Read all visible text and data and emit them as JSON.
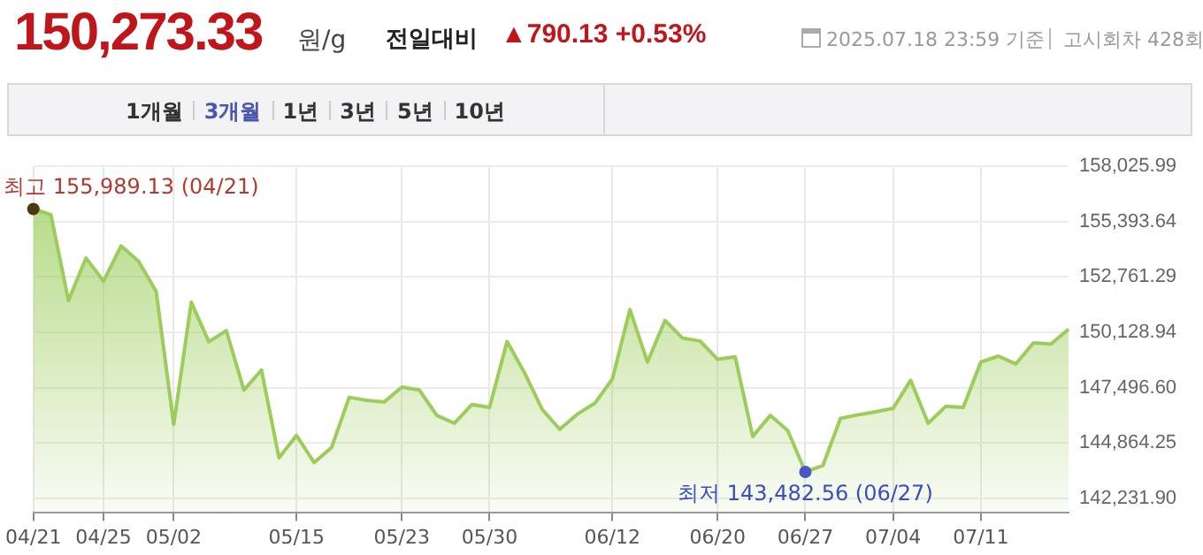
{
  "chart_data": {
    "type": "area",
    "title": "150,273.33",
    "annotations": [
      "원/g",
      "전일대비",
      "▲790.13 +0.53%",
      "2025.07.18 23:59 기준",
      "고시회차 428회",
      "1개월",
      "3개월",
      "1년",
      "3년",
      "5년",
      "10년",
      {
        "text": "최고 155,989.13 (04/21)",
        "x": "04/21",
        "y": 155989.13
      },
      {
        "text": "최저 143,482.56 (06/27)",
        "x": "06/27",
        "y": 143482.56
      }
    ],
    "categories": [
      "04/21",
      null,
      null,
      null,
      "04/25",
      null,
      null,
      null,
      "05/02",
      null,
      null,
      null,
      null,
      null,
      null,
      "05/15",
      null,
      null,
      null,
      null,
      null,
      "05/23",
      null,
      null,
      null,
      null,
      "05/30",
      null,
      null,
      null,
      null,
      null,
      null,
      "06/12",
      null,
      null,
      null,
      null,
      null,
      "06/20",
      null,
      null,
      null,
      null,
      "06/27",
      null,
      null,
      null,
      null,
      "07/04",
      null,
      null,
      null,
      null,
      "07/11",
      null,
      null,
      null,
      null,
      null
    ],
    "series": [
      {
        "color": "#9ccc5a",
        "values": [
          155989.13,
          155720,
          151640,
          153650,
          152560,
          154230,
          153500,
          152070,
          145740,
          151550,
          149680,
          150200,
          147380,
          148330,
          144160,
          145220,
          143930,
          144650,
          147030,
          146890,
          146810,
          147520,
          147380,
          146170,
          145800,
          146690,
          146550,
          149680,
          148190,
          146460,
          145510,
          146230,
          146750,
          147900,
          151210,
          148710,
          150690,
          149850,
          149710,
          148840,
          148960,
          145170,
          146170,
          145450,
          143482.56,
          143790,
          146030,
          146200,
          146340,
          146510,
          147840,
          145800,
          146600,
          146550,
          148710,
          148990,
          148620,
          149620,
          149570,
          150273.33
        ]
      }
    ],
    "ylim": [
      141568,
      158025.99
    ],
    "yticks": [
      {
        "value": 142231.9,
        "label": "142,231.90"
      },
      {
        "value": 144864.25,
        "label": "144,864.25"
      },
      {
        "value": 147496.6,
        "label": "147,496.60"
      },
      {
        "value": 150128.94,
        "label": "150,128.94"
      },
      {
        "value": 152761.29,
        "label": "152,761.29"
      },
      {
        "value": 155393.64,
        "label": "155,393.64"
      },
      {
        "value": 158025.99,
        "label": "158,025.99"
      }
    ],
    "grid": true,
    "legend": false,
    "marker": "none",
    "line_style": "solid"
  }
}
